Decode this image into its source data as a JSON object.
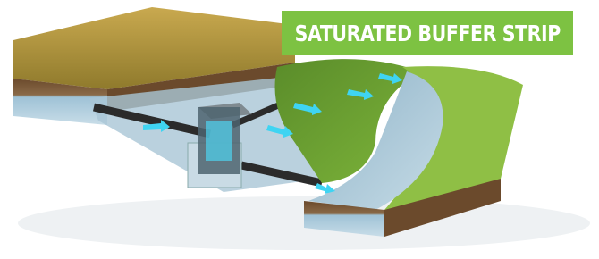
{
  "title": "SATURATED BUFFER STRIP"
}
